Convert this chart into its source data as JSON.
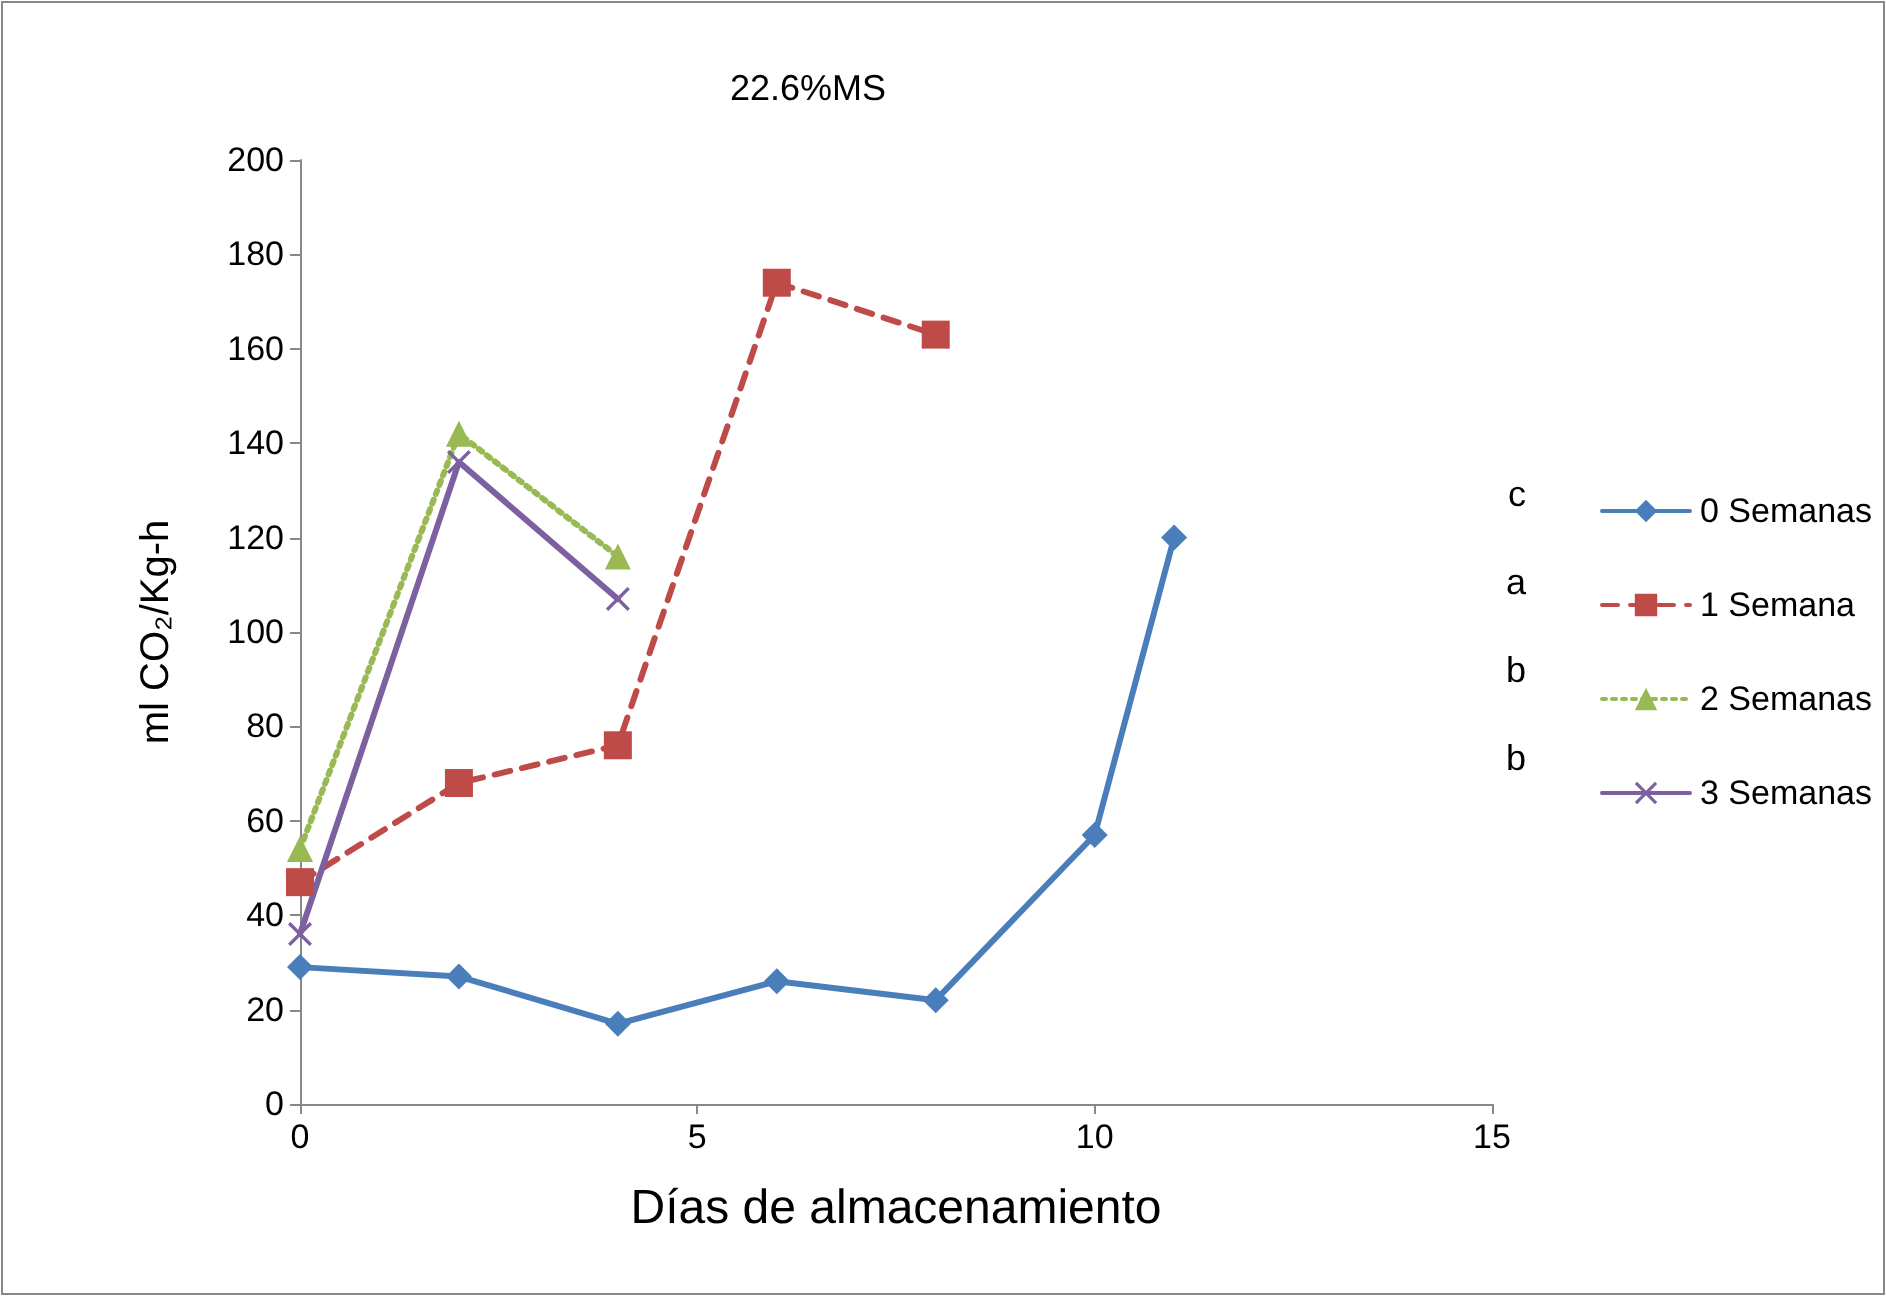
{
  "chart_data": {
    "type": "line",
    "title": "22.6%MS",
    "xlabel": "Días de almacenamiento",
    "ylabel": "ml CO₂/Kg-h",
    "xlim": [
      0,
      15
    ],
    "xticks": [
      0,
      5,
      10,
      15
    ],
    "ylim": [
      0,
      200
    ],
    "yticks": [
      0,
      20,
      40,
      60,
      80,
      100,
      120,
      140,
      160,
      180,
      200
    ],
    "grid": false,
    "legend": "right",
    "annotations": [
      "c",
      "a",
      "b",
      "b"
    ],
    "series": [
      {
        "name": "0 Semanas",
        "color": "#4a7ebb",
        "marker": "diamond",
        "line_style": "solid",
        "x": [
          0,
          2,
          4,
          6,
          8,
          10,
          11
        ],
        "values": [
          29,
          27,
          17,
          26,
          22,
          57,
          120
        ]
      },
      {
        "name": "1 Semana",
        "color": "#be4b48",
        "marker": "square",
        "line_style": "dashed",
        "x": [
          0,
          2,
          4,
          6,
          8
        ],
        "values": [
          47,
          68,
          76,
          174,
          163
        ]
      },
      {
        "name": "2 Semanas",
        "color": "#98b954",
        "marker": "triangle",
        "line_style": "dotted",
        "x": [
          0,
          2,
          4
        ],
        "values": [
          54,
          142,
          116
        ]
      },
      {
        "name": "3 Semanas",
        "color": "#7d60a0",
        "marker": "cross",
        "line_style": "solid",
        "x": [
          0,
          2,
          4
        ],
        "values": [
          36,
          136,
          107
        ]
      }
    ]
  }
}
